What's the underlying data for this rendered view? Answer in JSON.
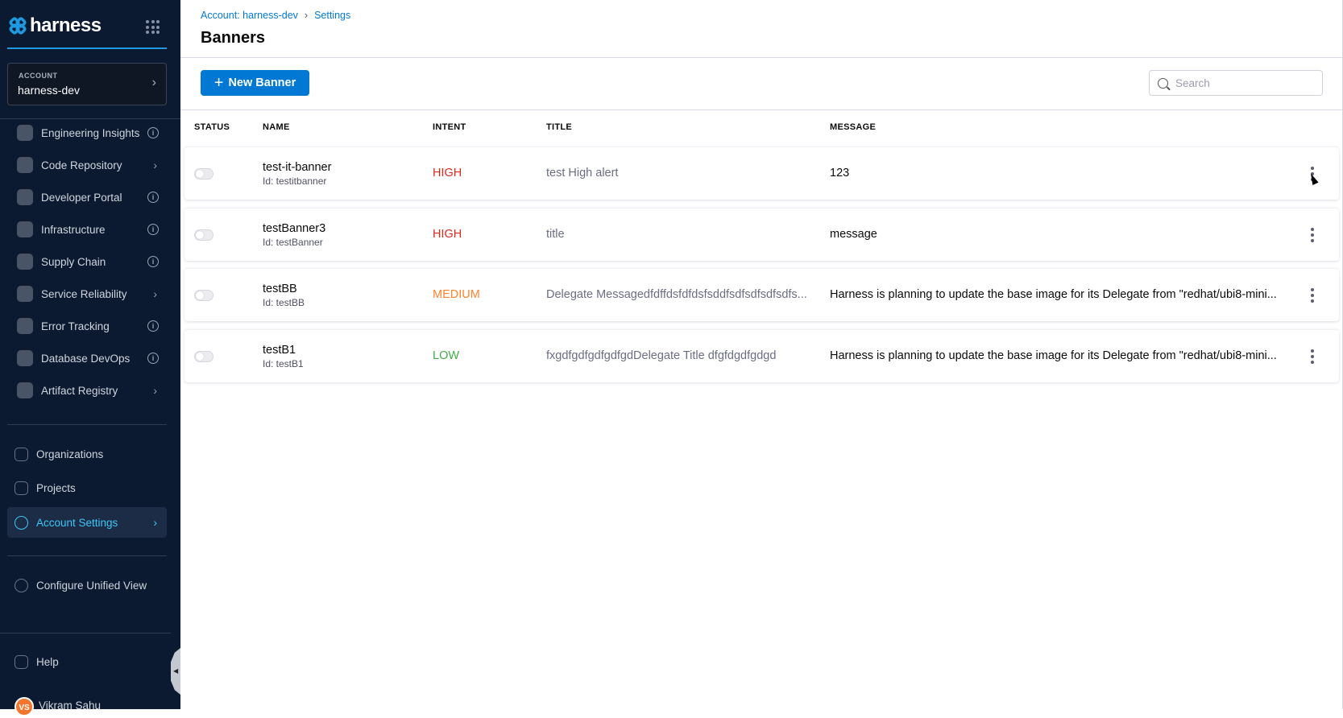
{
  "sidebar": {
    "logo": "harness",
    "account": {
      "label": "ACCOUNT",
      "value": "harness-dev"
    },
    "modules": [
      {
        "label": "Engineering Insights",
        "trail": "info"
      },
      {
        "label": "Code Repository",
        "trail": "chevron"
      },
      {
        "label": "Developer Portal",
        "trail": "info"
      },
      {
        "label": "Infrastructure",
        "trail": "info"
      },
      {
        "label": "Supply Chain",
        "trail": "info"
      },
      {
        "label": "Service Reliability",
        "trail": "chevron"
      },
      {
        "label": "Error Tracking",
        "trail": "info"
      },
      {
        "label": "Database DevOps",
        "trail": "info"
      },
      {
        "label": "Artifact Registry",
        "trail": "chevron"
      }
    ],
    "organizations": "Organizations",
    "projects": "Projects",
    "account_settings": "Account Settings",
    "configure": "Configure Unified View",
    "help": "Help",
    "user": {
      "initials": "VS",
      "name": "Vikram Sahu"
    }
  },
  "header": {
    "breadcrumb": [
      "Account: harness-dev",
      "Settings"
    ],
    "title": "Banners"
  },
  "toolbar": {
    "new_banner": "New Banner",
    "search_placeholder": "Search"
  },
  "table": {
    "columns": [
      "STATUS",
      "NAME",
      "INTENT",
      "TITLE",
      "MESSAGE"
    ],
    "rows": [
      {
        "name": "test-it-banner",
        "id": "Id: testitbanner",
        "intent": "HIGH",
        "title": "test High alert",
        "message": "123",
        "enabled": false
      },
      {
        "name": "testBanner3",
        "id": "Id: testBanner",
        "intent": "HIGH",
        "title": "title",
        "message": "message",
        "enabled": false
      },
      {
        "name": "testBB",
        "id": "Id: testBB",
        "intent": "MEDIUM",
        "title": "Delegate Messagedfdffdsfdfdsfsddfsdfsdfsdfsdfs...",
        "message": "Harness is planning to update the base image for its Delegate from \"redhat/ubi8-mini...",
        "enabled": false
      },
      {
        "name": "testB1",
        "id": "Id: testB1",
        "intent": "LOW",
        "title": "fxgdfgdfgdfgdfgdDelegate Title dfgfdgdfgdgd",
        "message": "Harness is planning to update the base image for its Delegate from \"redhat/ubi8-mini...",
        "enabled": false
      }
    ]
  },
  "colors": {
    "accent": "#0278d5",
    "sidebar_bg": "#0b1a30",
    "active": "#3dc7f6",
    "HIGH": "#da291d",
    "MEDIUM": "#ff832b",
    "LOW": "#42ab45"
  }
}
